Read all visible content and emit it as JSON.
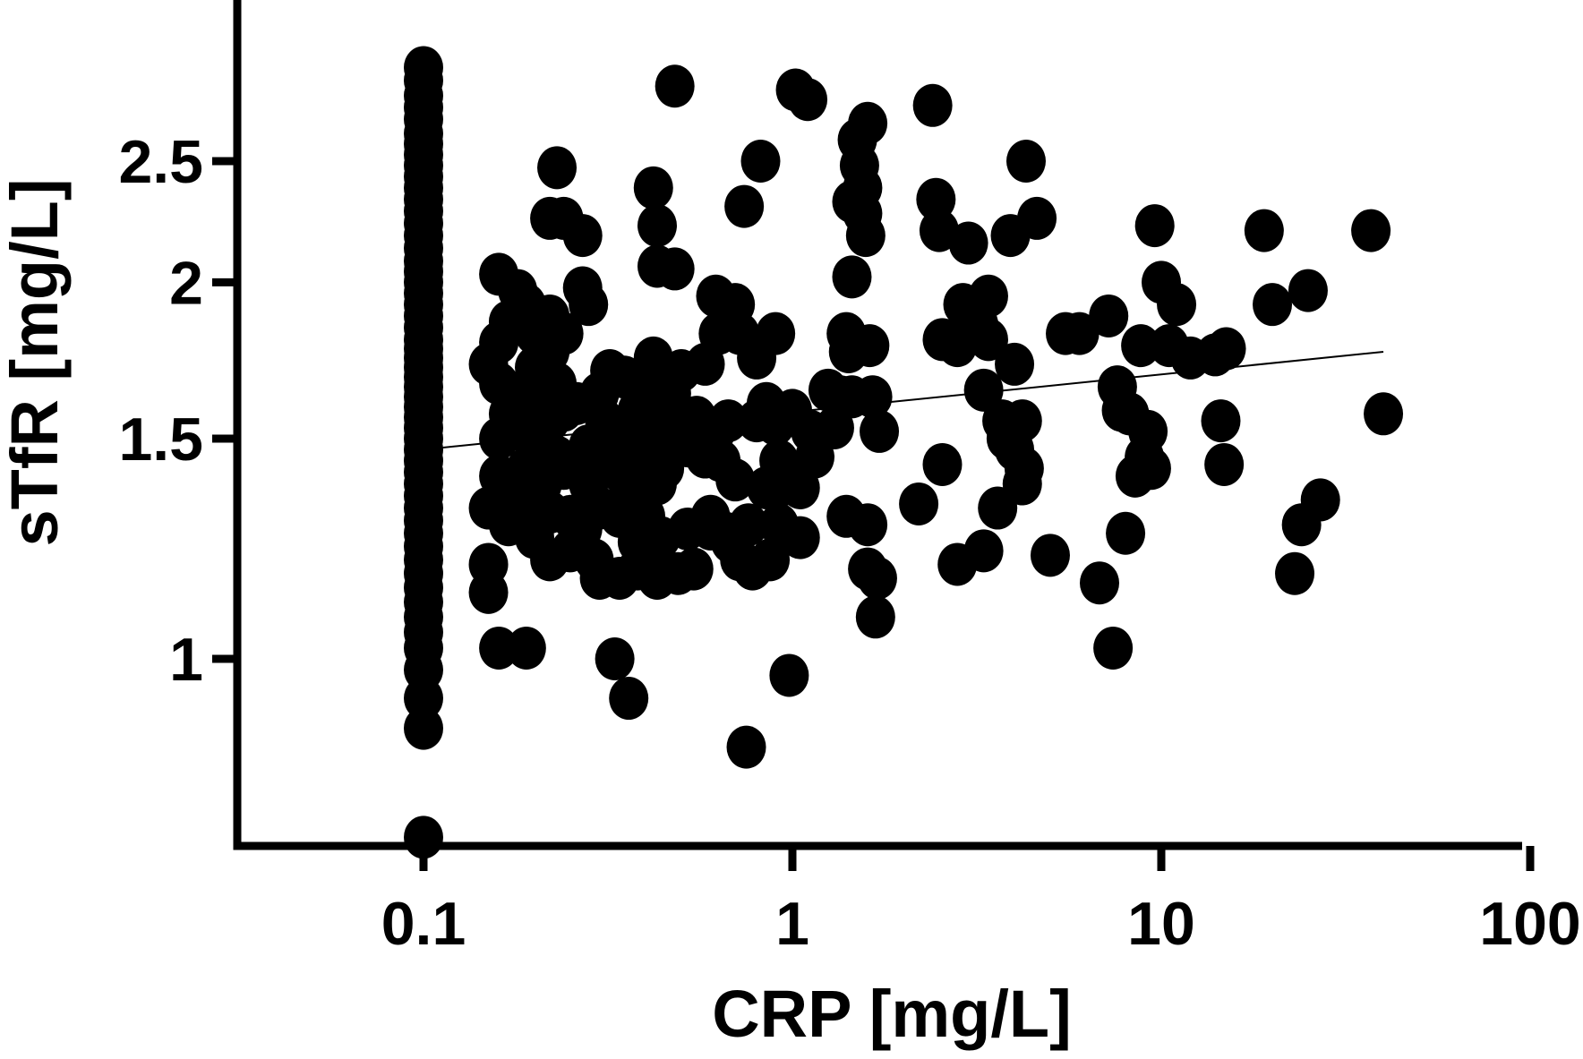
{
  "chart_data": {
    "type": "scatter",
    "title": "",
    "xlabel": "CRP [mg/L]",
    "ylabel": "sTfR [mg/L]",
    "x_scale": "log",
    "y_scale": "log",
    "xlim": [
      0.03,
      100
    ],
    "ylim": [
      0.62,
      3.3
    ],
    "x_ticks": [
      {
        "value": 0.1,
        "label": "0.1"
      },
      {
        "value": 1,
        "label": "1"
      },
      {
        "value": 10,
        "label": "10"
      },
      {
        "value": 100,
        "label": "100"
      }
    ],
    "y_ticks": [
      {
        "value": 1,
        "label": "1"
      },
      {
        "value": 1.5,
        "label": "1.5"
      },
      {
        "value": 2,
        "label": "2"
      },
      {
        "value": 2.5,
        "label": "2.5"
      }
    ],
    "grid": false,
    "legend": "none",
    "trend_line": {
      "x": [
        0.1,
        40
      ],
      "y": [
        1.47,
        1.76
      ]
    },
    "series": [
      {
        "color": "#000000",
        "points": [
          [
            0.1,
            0.72
          ],
          [
            0.1,
            0.88
          ],
          [
            0.1,
            0.93
          ],
          [
            0.1,
            0.98
          ],
          [
            0.1,
            1.02
          ],
          [
            0.1,
            1.05
          ],
          [
            0.1,
            1.08
          ],
          [
            0.1,
            1.11
          ],
          [
            0.1,
            1.14
          ],
          [
            0.1,
            1.17
          ],
          [
            0.1,
            1.2
          ],
          [
            0.1,
            1.23
          ],
          [
            0.1,
            1.26
          ],
          [
            0.1,
            1.29
          ],
          [
            0.1,
            1.32
          ],
          [
            0.1,
            1.35
          ],
          [
            0.1,
            1.38
          ],
          [
            0.1,
            1.41
          ],
          [
            0.1,
            1.44
          ],
          [
            0.1,
            1.47
          ],
          [
            0.1,
            1.5
          ],
          [
            0.1,
            1.53
          ],
          [
            0.1,
            1.56
          ],
          [
            0.1,
            1.59
          ],
          [
            0.1,
            1.62
          ],
          [
            0.1,
            1.65
          ],
          [
            0.1,
            1.68
          ],
          [
            0.1,
            1.71
          ],
          [
            0.1,
            1.74
          ],
          [
            0.1,
            1.77
          ],
          [
            0.1,
            1.8
          ],
          [
            0.1,
            1.84
          ],
          [
            0.1,
            1.88
          ],
          [
            0.1,
            1.92
          ],
          [
            0.1,
            1.96
          ],
          [
            0.1,
            2.0
          ],
          [
            0.1,
            2.04
          ],
          [
            0.1,
            2.08
          ],
          [
            0.1,
            2.13
          ],
          [
            0.1,
            2.18
          ],
          [
            0.1,
            2.23
          ],
          [
            0.1,
            2.28
          ],
          [
            0.1,
            2.33
          ],
          [
            0.1,
            2.38
          ],
          [
            0.1,
            2.43
          ],
          [
            0.1,
            2.48
          ],
          [
            0.1,
            2.53
          ],
          [
            0.1,
            2.58
          ],
          [
            0.1,
            2.63
          ],
          [
            0.1,
            2.7
          ],
          [
            0.1,
            2.76
          ],
          [
            0.1,
            2.82
          ],
          [
            0.1,
            2.9
          ],
          [
            0.1,
            2.97
          ],
          [
            0.16,
            1.02
          ],
          [
            0.19,
            1.02
          ],
          [
            0.15,
            1.13
          ],
          [
            0.15,
            1.19
          ],
          [
            0.15,
            1.32
          ],
          [
            0.16,
            1.4
          ],
          [
            0.16,
            1.5
          ],
          [
            0.17,
            1.57
          ],
          [
            0.16,
            1.66
          ],
          [
            0.15,
            1.72
          ],
          [
            0.16,
            1.79
          ],
          [
            0.17,
            1.86
          ],
          [
            0.16,
            2.03
          ],
          [
            0.18,
            1.97
          ],
          [
            0.19,
            1.92
          ],
          [
            0.2,
            1.82
          ],
          [
            0.17,
            1.28
          ],
          [
            0.18,
            1.33
          ],
          [
            0.19,
            1.42
          ],
          [
            0.18,
            1.53
          ],
          [
            0.19,
            1.64
          ],
          [
            0.2,
            1.71
          ],
          [
            0.21,
            1.62
          ],
          [
            0.2,
            1.48
          ],
          [
            0.21,
            1.38
          ],
          [
            0.2,
            1.25
          ],
          [
            0.22,
            1.2
          ],
          [
            0.22,
            1.31
          ],
          [
            0.23,
            1.45
          ],
          [
            0.22,
            1.55
          ],
          [
            0.23,
            1.66
          ],
          [
            0.22,
            1.76
          ],
          [
            0.22,
            1.88
          ],
          [
            0.24,
            1.82
          ],
          [
            0.24,
            1.58
          ],
          [
            0.24,
            1.42
          ],
          [
            0.25,
            1.3
          ],
          [
            0.25,
            1.22
          ],
          [
            0.22,
            2.25
          ],
          [
            0.24,
            2.25
          ],
          [
            0.23,
            2.47
          ],
          [
            0.27,
            2.18
          ],
          [
            0.27,
            1.98
          ],
          [
            0.28,
            1.92
          ],
          [
            0.26,
            1.6
          ],
          [
            0.28,
            1.48
          ],
          [
            0.28,
            1.38
          ],
          [
            0.27,
            1.27
          ],
          [
            0.29,
            1.2
          ],
          [
            0.3,
            1.16
          ],
          [
            0.3,
            1.32
          ],
          [
            0.31,
            1.46
          ],
          [
            0.31,
            1.55
          ],
          [
            0.3,
            1.63
          ],
          [
            0.33,
            1.52
          ],
          [
            0.33,
            1.42
          ],
          [
            0.32,
            1.7
          ],
          [
            0.34,
            1.3
          ],
          [
            0.34,
            1.16
          ],
          [
            0.33,
            1.0
          ],
          [
            0.36,
            0.93
          ],
          [
            0.35,
            1.68
          ],
          [
            0.36,
            1.37
          ],
          [
            0.37,
            1.48
          ],
          [
            0.38,
            1.58
          ],
          [
            0.38,
            1.24
          ],
          [
            0.38,
            1.18
          ],
          [
            0.4,
            1.3
          ],
          [
            0.4,
            1.45
          ],
          [
            0.41,
            1.55
          ],
          [
            0.42,
            1.66
          ],
          [
            0.42,
            1.74
          ],
          [
            0.42,
            2.38
          ],
          [
            0.43,
            2.22
          ],
          [
            0.43,
            2.06
          ],
          [
            0.43,
            1.38
          ],
          [
            0.43,
            1.16
          ],
          [
            0.44,
            1.25
          ],
          [
            0.45,
            1.42
          ],
          [
            0.46,
            1.52
          ],
          [
            0.47,
            1.63
          ],
          [
            0.48,
            2.87
          ],
          [
            0.48,
            2.05
          ],
          [
            0.49,
            1.17
          ],
          [
            0.5,
            1.7
          ],
          [
            0.52,
            1.27
          ],
          [
            0.52,
            1.48
          ],
          [
            0.54,
            1.18
          ],
          [
            0.55,
            1.56
          ],
          [
            0.58,
            1.45
          ],
          [
            0.58,
            1.72
          ],
          [
            0.6,
            1.3
          ],
          [
            0.6,
            1.27
          ],
          [
            0.62,
            1.95
          ],
          [
            0.62,
            1.52
          ],
          [
            0.63,
            1.82
          ],
          [
            0.64,
            1.44
          ],
          [
            0.66,
            1.26
          ],
          [
            0.67,
            1.55
          ],
          [
            0.68,
            1.24
          ],
          [
            0.7,
            1.39
          ],
          [
            0.7,
            1.92
          ],
          [
            0.72,
            1.82
          ],
          [
            0.74,
            2.3
          ],
          [
            0.72,
            1.2
          ],
          [
            0.75,
            0.85
          ],
          [
            0.76,
            1.28
          ],
          [
            0.78,
            1.18
          ],
          [
            0.8,
            1.55
          ],
          [
            0.8,
            1.74
          ],
          [
            0.82,
            2.5
          ],
          [
            0.85,
            1.6
          ],
          [
            0.85,
            1.37
          ],
          [
            0.87,
            1.2
          ],
          [
            0.9,
            1.82
          ],
          [
            0.9,
            1.54
          ],
          [
            0.92,
            1.44
          ],
          [
            0.92,
            1.28
          ],
          [
            0.96,
            1.38
          ],
          [
            0.98,
            0.97
          ],
          [
            1.0,
            1.58
          ],
          [
            1.02,
            2.85
          ],
          [
            1.05,
            1.25
          ],
          [
            1.05,
            1.37
          ],
          [
            1.1,
            2.8
          ],
          [
            1.12,
            1.52
          ],
          [
            1.15,
            1.45
          ],
          [
            1.25,
            1.64
          ],
          [
            1.3,
            1.53
          ],
          [
            1.35,
            1.62
          ],
          [
            1.4,
            1.3
          ],
          [
            1.4,
            1.82
          ],
          [
            1.42,
            1.76
          ],
          [
            1.45,
            1.62
          ],
          [
            1.45,
            2.02
          ],
          [
            1.45,
            2.32
          ],
          [
            1.5,
            2.6
          ],
          [
            1.52,
            2.48
          ],
          [
            1.55,
            2.38
          ],
          [
            1.55,
            2.27
          ],
          [
            1.58,
            2.18
          ],
          [
            1.6,
            2.68
          ],
          [
            1.62,
            1.78
          ],
          [
            1.6,
            1.28
          ],
          [
            1.6,
            1.18
          ],
          [
            1.65,
            1.62
          ],
          [
            1.68,
            1.08
          ],
          [
            1.7,
            1.16
          ],
          [
            1.72,
            1.52
          ],
          [
            2.2,
            1.33
          ],
          [
            2.4,
            2.77
          ],
          [
            2.45,
            2.33
          ],
          [
            2.5,
            2.2
          ],
          [
            2.55,
            1.43
          ],
          [
            2.55,
            1.8
          ],
          [
            2.8,
            1.19
          ],
          [
            2.8,
            1.78
          ],
          [
            2.9,
            1.92
          ],
          [
            3.0,
            2.15
          ],
          [
            3.2,
            1.85
          ],
          [
            3.3,
            1.64
          ],
          [
            3.3,
            1.22
          ],
          [
            3.4,
            1.95
          ],
          [
            3.4,
            1.8
          ],
          [
            3.6,
            1.32
          ],
          [
            3.7,
            1.55
          ],
          [
            3.8,
            1.5
          ],
          [
            3.9,
            2.18
          ],
          [
            4.0,
            1.72
          ],
          [
            4.0,
            1.47
          ],
          [
            4.2,
            1.38
          ],
          [
            4.2,
            1.55
          ],
          [
            4.25,
            1.42
          ],
          [
            4.3,
            2.5
          ],
          [
            4.6,
            2.25
          ],
          [
            5.0,
            1.21
          ],
          [
            5.5,
            1.82
          ],
          [
            6.0,
            1.82
          ],
          [
            6.8,
            1.15
          ],
          [
            7.2,
            1.88
          ],
          [
            7.4,
            1.02
          ],
          [
            7.6,
            1.65
          ],
          [
            7.8,
            1.58
          ],
          [
            8.0,
            1.26
          ],
          [
            8.2,
            1.57
          ],
          [
            8.5,
            1.4
          ],
          [
            8.8,
            1.78
          ],
          [
            9.0,
            1.45
          ],
          [
            9.2,
            1.52
          ],
          [
            9.4,
            1.42
          ],
          [
            9.6,
            2.22
          ],
          [
            10,
            2.0
          ],
          [
            10.5,
            1.78
          ],
          [
            11,
            1.92
          ],
          [
            12,
            1.74
          ],
          [
            14,
            1.75
          ],
          [
            14.5,
            1.55
          ],
          [
            14.8,
            1.43
          ],
          [
            15,
            1.77
          ],
          [
            19,
            2.2
          ],
          [
            20,
            1.92
          ],
          [
            23,
            1.17
          ],
          [
            24,
            1.28
          ],
          [
            25,
            1.97
          ],
          [
            27,
            1.34
          ],
          [
            37,
            2.2
          ],
          [
            40,
            1.57
          ]
        ]
      }
    ]
  }
}
